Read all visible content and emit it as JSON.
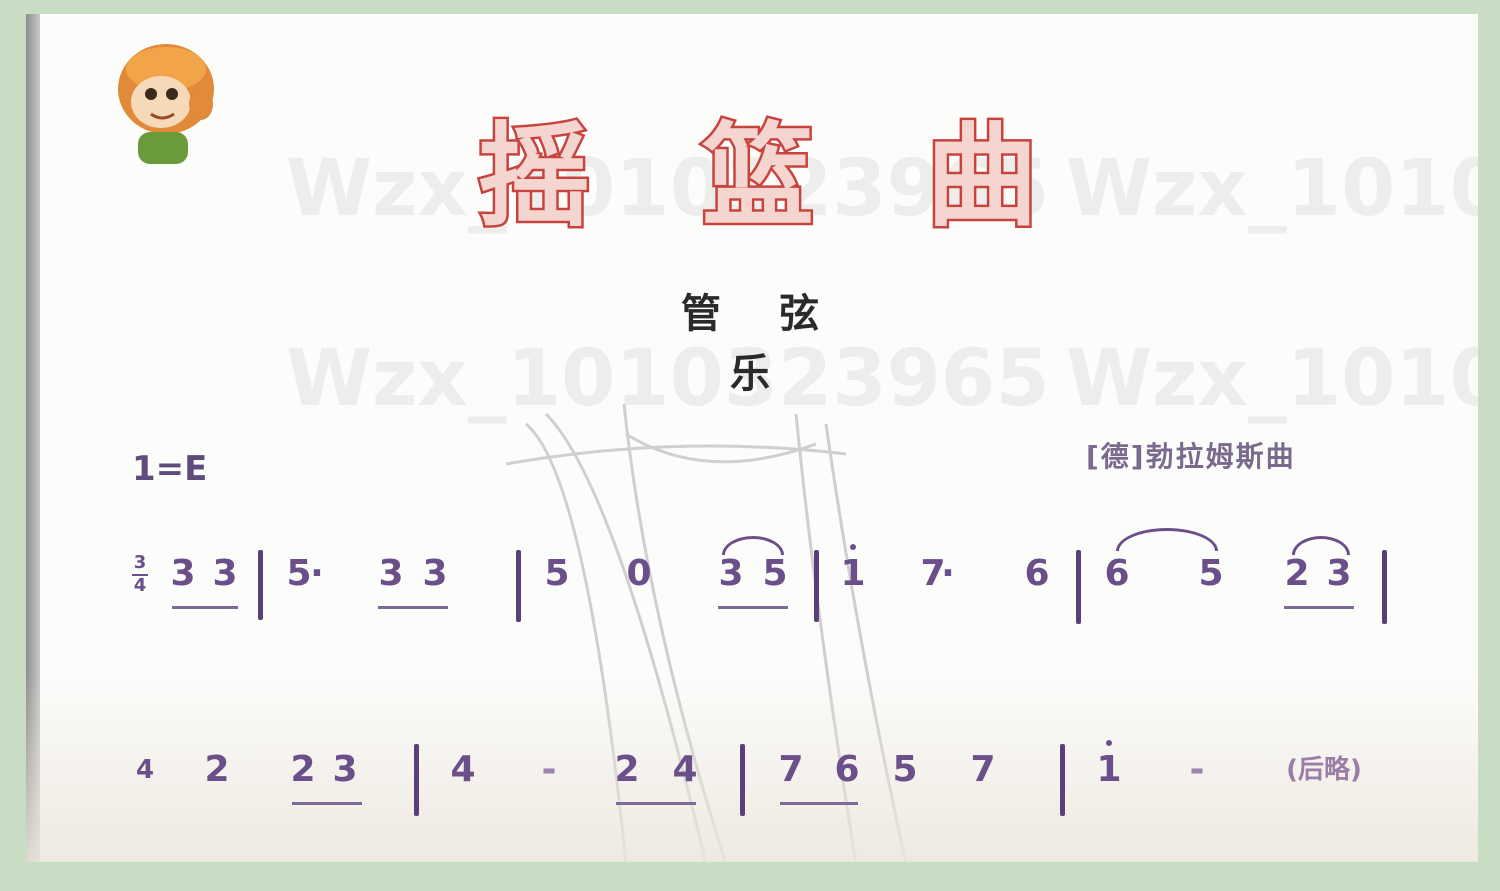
{
  "title": [
    "摇",
    "篮",
    "曲"
  ],
  "subtitle": "管 弦 乐",
  "key_signature": "1=E",
  "composer": "[德]勃拉姆斯曲",
  "watermark": "Wzx_1010323965",
  "line1": {
    "time_signature_top": "3",
    "time_signature_bottom": "4",
    "notes": [
      "3",
      "3",
      "5",
      "·",
      "3",
      "3",
      "5",
      "0",
      "3",
      "5",
      "1",
      "7",
      "·",
      "6",
      "6",
      "5",
      "2",
      "3"
    ]
  },
  "line2": {
    "notes": [
      "4",
      "2",
      "2",
      "3",
      "4",
      "-",
      "2",
      "4",
      "7",
      "6",
      "5",
      "7",
      "1",
      "-"
    ],
    "ending": "(后略)"
  },
  "colors": {
    "title_stroke": "#c8433e",
    "title_fill": "#f4d5cf",
    "notes": "#6b4f8a"
  }
}
